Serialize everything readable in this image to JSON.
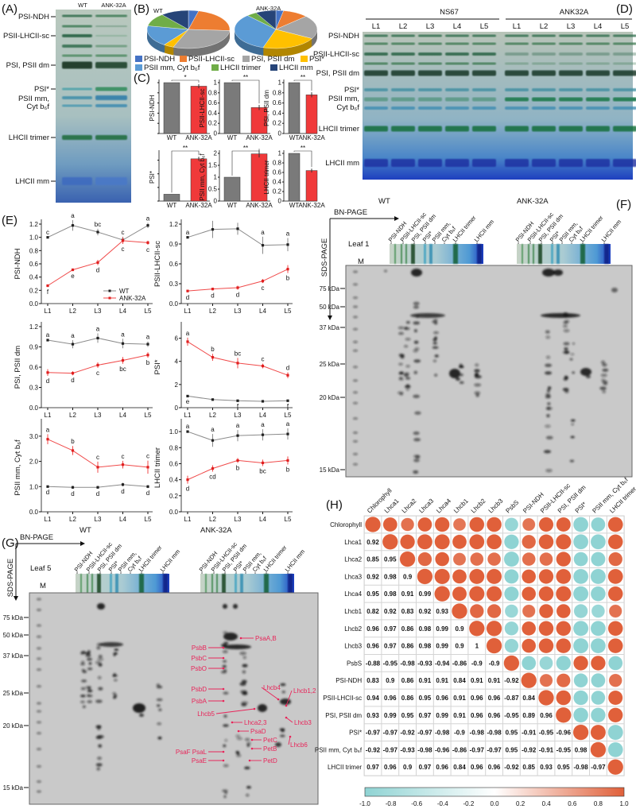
{
  "panels": {
    "A": "(A)",
    "B": "(B)",
    "C": "(C)",
    "D": "(D)",
    "E": "(E)",
    "F": "(F)",
    "G": "(G)",
    "H": "(H)"
  },
  "panelA": {
    "lanes": [
      "WT",
      "ANK-32A"
    ],
    "labels": [
      "PSI-NDH",
      "PSII-LHCII-sc",
      "PSI, PSII dm",
      "PSI*",
      "PSII mm,",
      "Cyt b₆f",
      "LHCII trimer",
      "LHCII mm"
    ]
  },
  "panelB": {
    "pies": [
      {
        "title": "WT",
        "values": [
          4,
          22,
          30,
          4,
          18,
          11,
          11
        ]
      },
      {
        "title": "ANK-32A",
        "values": [
          3,
          10,
          20,
          22,
          33,
          4,
          8
        ]
      }
    ],
    "legend": [
      "PSI-NDH",
      "PSII-LHCII-sc",
      "PSI, PSII dm",
      "PSI*",
      "PSII mm, Cyt b₆f",
      "LHCII trimer",
      "LHCII mm"
    ],
    "colors": [
      "#4472c4",
      "#ed7d31",
      "#a5a5a5",
      "#ffc000",
      "#5b9bd5",
      "#70ad47",
      "#264478"
    ]
  },
  "chart_data": [
    {
      "type": "bar",
      "panel": "C",
      "categories": [
        "WT",
        "ANK-32A"
      ],
      "colors": {
        "WT": "#7a7a7a",
        "ANK-32A": "#f0393a"
      },
      "charts": [
        {
          "ylabel": "PSI-NDH",
          "values": [
            1.0,
            0.93
          ],
          "err": [
            0,
            0.04
          ],
          "sig": "*",
          "ylim": [
            0,
            1.0
          ],
          "ticks": [
            0.0,
            0.2,
            0.4,
            0.6,
            0.8,
            1.0
          ]
        },
        {
          "ylabel": "PSII-LHCII-sc",
          "values": [
            1.0,
            0.51
          ],
          "err": [
            0,
            0.05
          ],
          "sig": "**",
          "ylim": [
            0,
            1.0
          ],
          "ticks": [
            0.0,
            0.2,
            0.4,
            0.6,
            0.8,
            1.0
          ]
        },
        {
          "ylabel": "PSI, PSII dm",
          "values": [
            1.0,
            0.76
          ],
          "err": [
            0,
            0.05
          ],
          "sig": "**",
          "ylim": [
            0,
            1.0
          ],
          "ticks": [
            0.0,
            0.2,
            0.4,
            0.6,
            0.8,
            1.0
          ]
        },
        {
          "ylabel": "PSI*",
          "values": [
            1.0,
            6.2
          ],
          "err": [
            0,
            0.3
          ],
          "sig": "**",
          "ylim": [
            0,
            7
          ],
          "ticks": [
            0,
            2,
            4,
            6
          ]
        },
        {
          "ylabel": "PSII mm, Cyt b₆f",
          "values": [
            1.0,
            1.98
          ],
          "err": [
            0,
            0.15
          ],
          "sig": "**",
          "ylim": [
            0,
            2.0
          ],
          "ticks": [
            0.0,
            0.5,
            1.0,
            1.5,
            2.0
          ]
        },
        {
          "ylabel": "LHCII trimer",
          "values": [
            1.0,
            0.64
          ],
          "err": [
            0,
            0.04
          ],
          "sig": "**",
          "ylim": [
            0,
            1.0
          ],
          "ticks": [
            0.0,
            0.2,
            0.4,
            0.6,
            0.8,
            1.0
          ]
        }
      ]
    },
    {
      "type": "line",
      "panel": "E",
      "x": [
        "L1",
        "L2",
        "L3",
        "L4",
        "L5"
      ],
      "legend": [
        "WT",
        "ANK-32A"
      ],
      "colors": {
        "WT": "#8a8a8a",
        "ANK-32A": "#f04a4a"
      },
      "charts": [
        {
          "ylabel": "PSI-NDH",
          "ylim": [
            0,
            1.2
          ],
          "ticks": [
            "0.0",
            "0.2",
            "0.4",
            "0.6",
            "0.8",
            "1.0",
            "1.2"
          ],
          "series": [
            {
              "name": "WT",
              "values": [
                1.0,
                1.18,
                1.08,
                0.96,
                1.18
              ],
              "err": [
                0.01,
                0.08,
                0.05,
                0.05,
                0.04
              ],
              "letters": [
                "c",
                "a",
                "bc",
                "c",
                "a"
              ]
            },
            {
              "name": "ANK-32A",
              "values": [
                0.27,
                0.51,
                0.62,
                0.95,
                0.92
              ],
              "err": [
                0.02,
                0.02,
                0.04,
                0.05,
                0.03
              ],
              "letters": [
                "f",
                "e",
                "d",
                "c",
                "c"
              ]
            }
          ]
        },
        {
          "ylabel": "PSII-LHCII-sc",
          "ylim": [
            0,
            1.2
          ],
          "ticks": [
            "0.0",
            "0.3",
            "0.6",
            "0.9",
            "1.2"
          ],
          "series": [
            {
              "name": "WT",
              "values": [
                1.0,
                1.12,
                1.13,
                0.88,
                0.89
              ],
              "err": [
                0.01,
                0.13,
                0.09,
                0.13,
                0.1
              ],
              "letters": [
                "a",
                "",
                "",
                "a",
                "a"
              ]
            },
            {
              "name": "ANK-32A",
              "values": [
                0.19,
                0.22,
                0.24,
                0.34,
                0.52
              ],
              "err": [
                0.02,
                0.02,
                0.03,
                0.03,
                0.06
              ],
              "letters": [
                "d",
                "d",
                "d",
                "c",
                "b"
              ]
            }
          ]
        },
        {
          "ylabel": "PSI, PSII dm",
          "ylim": [
            0,
            1.2
          ],
          "ticks": [
            "0.0",
            "0.3",
            "0.6",
            "0.9",
            "1.2"
          ],
          "series": [
            {
              "name": "WT",
              "values": [
                1.0,
                0.94,
                1.03,
                0.95,
                0.94
              ],
              "err": [
                0.01,
                0.06,
                0.07,
                0.07,
                0.04
              ],
              "letters": [
                "a",
                "a",
                "a",
                "a",
                "a"
              ]
            },
            {
              "name": "ANK-32A",
              "values": [
                0.52,
                0.51,
                0.63,
                0.7,
                0.78
              ],
              "err": [
                0.05,
                0.03,
                0.04,
                0.05,
                0.04
              ],
              "letters": [
                "d",
                "d",
                "c",
                "bc",
                "b"
              ]
            }
          ]
        },
        {
          "ylabel": "PSI*",
          "ylim": [
            0,
            7
          ],
          "ticks": [
            "0",
            "2",
            "4",
            "6"
          ],
          "series": [
            {
              "name": "WT",
              "values": [
                1.0,
                0.7,
                0.6,
                0.55,
                0.6
              ],
              "err": [
                0.03,
                0.05,
                0.04,
                0.04,
                0.05
              ],
              "letters": [
                "e",
                "",
                "f",
                "",
                "f"
              ]
            },
            {
              "name": "ANK-32A",
              "values": [
                5.7,
                4.35,
                3.85,
                3.6,
                2.8
              ],
              "err": [
                0.35,
                0.3,
                0.45,
                0.2,
                0.25
              ],
              "letters": [
                "a",
                "b",
                "bc",
                "c",
                "d"
              ]
            }
          ]
        },
        {
          "ylabel": "PSII mm, Cyt b₆f",
          "ylim": [
            0,
            3.5
          ],
          "ticks": [
            "0.0",
            "1.0",
            "2.0",
            "3.0"
          ],
          "series": [
            {
              "name": "WT",
              "values": [
                1.0,
                0.97,
                0.97,
                1.08,
                1.0
              ],
              "err": [
                0.02,
                0.06,
                0.06,
                0.07,
                0.06
              ],
              "letters": [
                "d",
                "d",
                "d",
                "d",
                "d"
              ]
            },
            {
              "name": "ANK-32A",
              "values": [
                2.88,
                2.43,
                1.77,
                1.87,
                1.77
              ],
              "err": [
                0.2,
                0.18,
                0.22,
                0.15,
                0.26
              ],
              "letters": [
                "a",
                "b",
                "c",
                "c",
                "c"
              ]
            }
          ]
        },
        {
          "ylabel": "LHCII trimer",
          "ylim": [
            0,
            1.1
          ],
          "ticks": [
            "0.0",
            "0.2",
            "0.4",
            "0.6",
            "0.8",
            "1.0"
          ],
          "series": [
            {
              "name": "WT",
              "values": [
                1.0,
                0.89,
                0.95,
                0.96,
                0.97
              ],
              "err": [
                0.01,
                0.08,
                0.07,
                0.07,
                0.07
              ],
              "letters": [
                "a",
                "a",
                "a",
                "a",
                "a"
              ]
            },
            {
              "name": "ANK-32A",
              "values": [
                0.4,
                0.54,
                0.64,
                0.61,
                0.64
              ],
              "err": [
                0.05,
                0.04,
                0.03,
                0.04,
                0.05
              ],
              "letters": [
                "d",
                "cd",
                "b",
                "bc",
                "b"
              ]
            }
          ]
        }
      ]
    },
    {
      "type": "heatmap",
      "panel": "H",
      "labels": [
        "Chlorophyll",
        "Lhca1",
        "Lhca2",
        "Lhca3",
        "Lhca4",
        "Lhcb1",
        "Lhcb2",
        "Lhcb3",
        "PsbS",
        "PSI-NDH",
        "PSII-LHCII-sc",
        "PSI, PSII dm",
        "PSI*",
        "PSII mm, Cyt b₆f",
        "LHCII trimer"
      ],
      "lower": [
        [],
        [
          0.92
        ],
        [
          0.85,
          0.95
        ],
        [
          0.92,
          0.98,
          0.9
        ],
        [
          0.95,
          0.98,
          0.91,
          0.99
        ],
        [
          0.82,
          0.92,
          0.83,
          0.92,
          0.93
        ],
        [
          0.96,
          0.97,
          0.86,
          0.98,
          0.99,
          0.9
        ],
        [
          0.96,
          0.97,
          0.86,
          0.98,
          0.99,
          0.9,
          1.0
        ],
        [
          -0.88,
          -0.95,
          -0.98,
          -0.93,
          -0.94,
          -0.86,
          -0.9,
          -0.9
        ],
        [
          0.83,
          0.9,
          0.86,
          0.91,
          0.91,
          0.84,
          0.91,
          0.91,
          -0.92
        ],
        [
          0.94,
          0.96,
          0.86,
          0.95,
          0.96,
          0.91,
          0.96,
          0.96,
          -0.87,
          0.84
        ],
        [
          0.93,
          0.99,
          0.95,
          0.97,
          0.99,
          0.91,
          0.96,
          0.96,
          -0.95,
          0.89,
          0.96
        ],
        [
          -0.97,
          -0.97,
          -0.92,
          -0.97,
          -0.98,
          -0.9,
          -0.98,
          -0.98,
          0.95,
          -0.91,
          -0.95,
          -0.96
        ],
        [
          -0.92,
          -0.97,
          -0.93,
          -0.98,
          -0.96,
          -0.86,
          -0.97,
          -0.97,
          0.95,
          -0.92,
          -0.91,
          -0.95,
          0.98
        ],
        [
          0.97,
          0.96,
          0.9,
          0.97,
          0.96,
          0.84,
          0.96,
          0.96,
          -0.92,
          0.85,
          0.93,
          0.95,
          -0.98,
          -0.97
        ]
      ],
      "colorbar_ticks": [
        "-1.0",
        "-0.8",
        "-0.6",
        "-0.4",
        "-0.2",
        "0.0",
        "0.2",
        "0.4",
        "0.6",
        "0.8",
        "1.0"
      ],
      "colors": {
        "negative": "#8fd3d3",
        "positive": "#e0603a"
      }
    }
  ],
  "panelD": {
    "groups": [
      "NS67",
      "ANK32A"
    ],
    "lanes": [
      "L1",
      "L2",
      "L3",
      "L4",
      "L5"
    ],
    "labels": [
      "PSI-NDH",
      "PSII-LHCII-sc",
      "PSI, PSII dm",
      "PSI*",
      "PSII mm,",
      "Cyt b₆f",
      "LHCII trimer",
      "LHCII mm"
    ]
  },
  "gel2d": {
    "bn_page": "BN-PAGE",
    "sds_page": "SDS-PAGE",
    "marker": "M",
    "genotypes": [
      "WT",
      "ANK-32A"
    ],
    "lanes": [
      "PSI-NDH",
      "PSII-LHCII-sc",
      "PSI, PSII dm",
      "PSI*",
      "PSII mm,",
      "Cyt b₆f",
      "LHCII trimer",
      "LHCII mm"
    ],
    "kda": [
      "75 kDa",
      "50 kDa",
      "37 kDa",
      "25 kDa",
      "20 kDa",
      "15 kDa"
    ],
    "F": {
      "leaf": "Leaf 1"
    },
    "G": {
      "leaf": "Leaf 5",
      "proteins": [
        "PsaA,B",
        "PsbB",
        "PsbC",
        "PsbO",
        "PsbD",
        "PsbA",
        "Lhcb5",
        "Lhca2,3",
        "PsaD",
        "PetC",
        "PetB",
        "PsaF PsaL",
        "PsaE",
        "PetD",
        "Lhcb4",
        "Lhcb1,2",
        "Lhcb3",
        "Lhcb6"
      ],
      "protein_color": "#e8265a"
    }
  }
}
